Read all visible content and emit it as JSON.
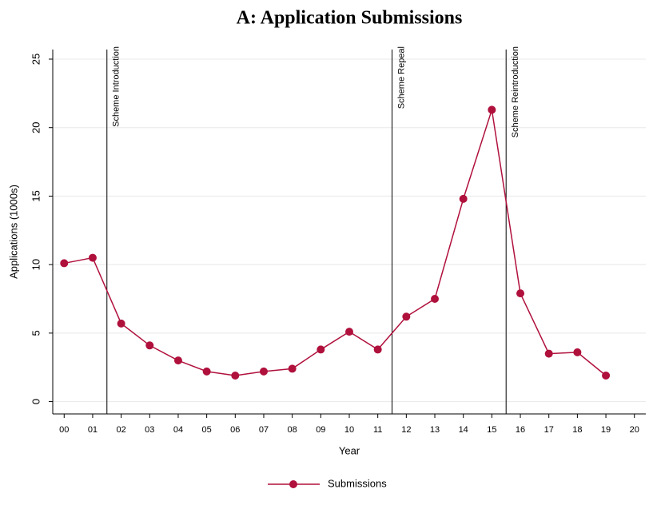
{
  "chart_data": {
    "type": "line",
    "title": "A: Application Submissions",
    "x_label": "Year",
    "y_label": "Applications (1000s)",
    "categories": [
      "00",
      "01",
      "02",
      "03",
      "04",
      "05",
      "06",
      "07",
      "08",
      "09",
      "10",
      "11",
      "12",
      "13",
      "14",
      "15",
      "16",
      "17",
      "18",
      "19",
      "20"
    ],
    "series": [
      {
        "name": "Submissions",
        "color": "#b0103c",
        "values": [
          10.1,
          10.5,
          5.7,
          4.1,
          3.0,
          2.2,
          1.9,
          2.2,
          2.4,
          3.8,
          5.1,
          3.8,
          6.2,
          7.5,
          14.8,
          21.3,
          7.9,
          3.5,
          3.6,
          1.9,
          null
        ]
      }
    ],
    "annotations": [
      {
        "text": "Scheme Introduction",
        "x": 1.5
      },
      {
        "text": "Scheme Repeal",
        "x": 11.5
      },
      {
        "text": "Scheme Reintroduction",
        "x": 15.5
      }
    ],
    "ylim": [
      -0.9,
      25.7
    ],
    "yticks": [
      0,
      5,
      10,
      15,
      20,
      25
    ],
    "grid": true,
    "legend": "bottom"
  }
}
